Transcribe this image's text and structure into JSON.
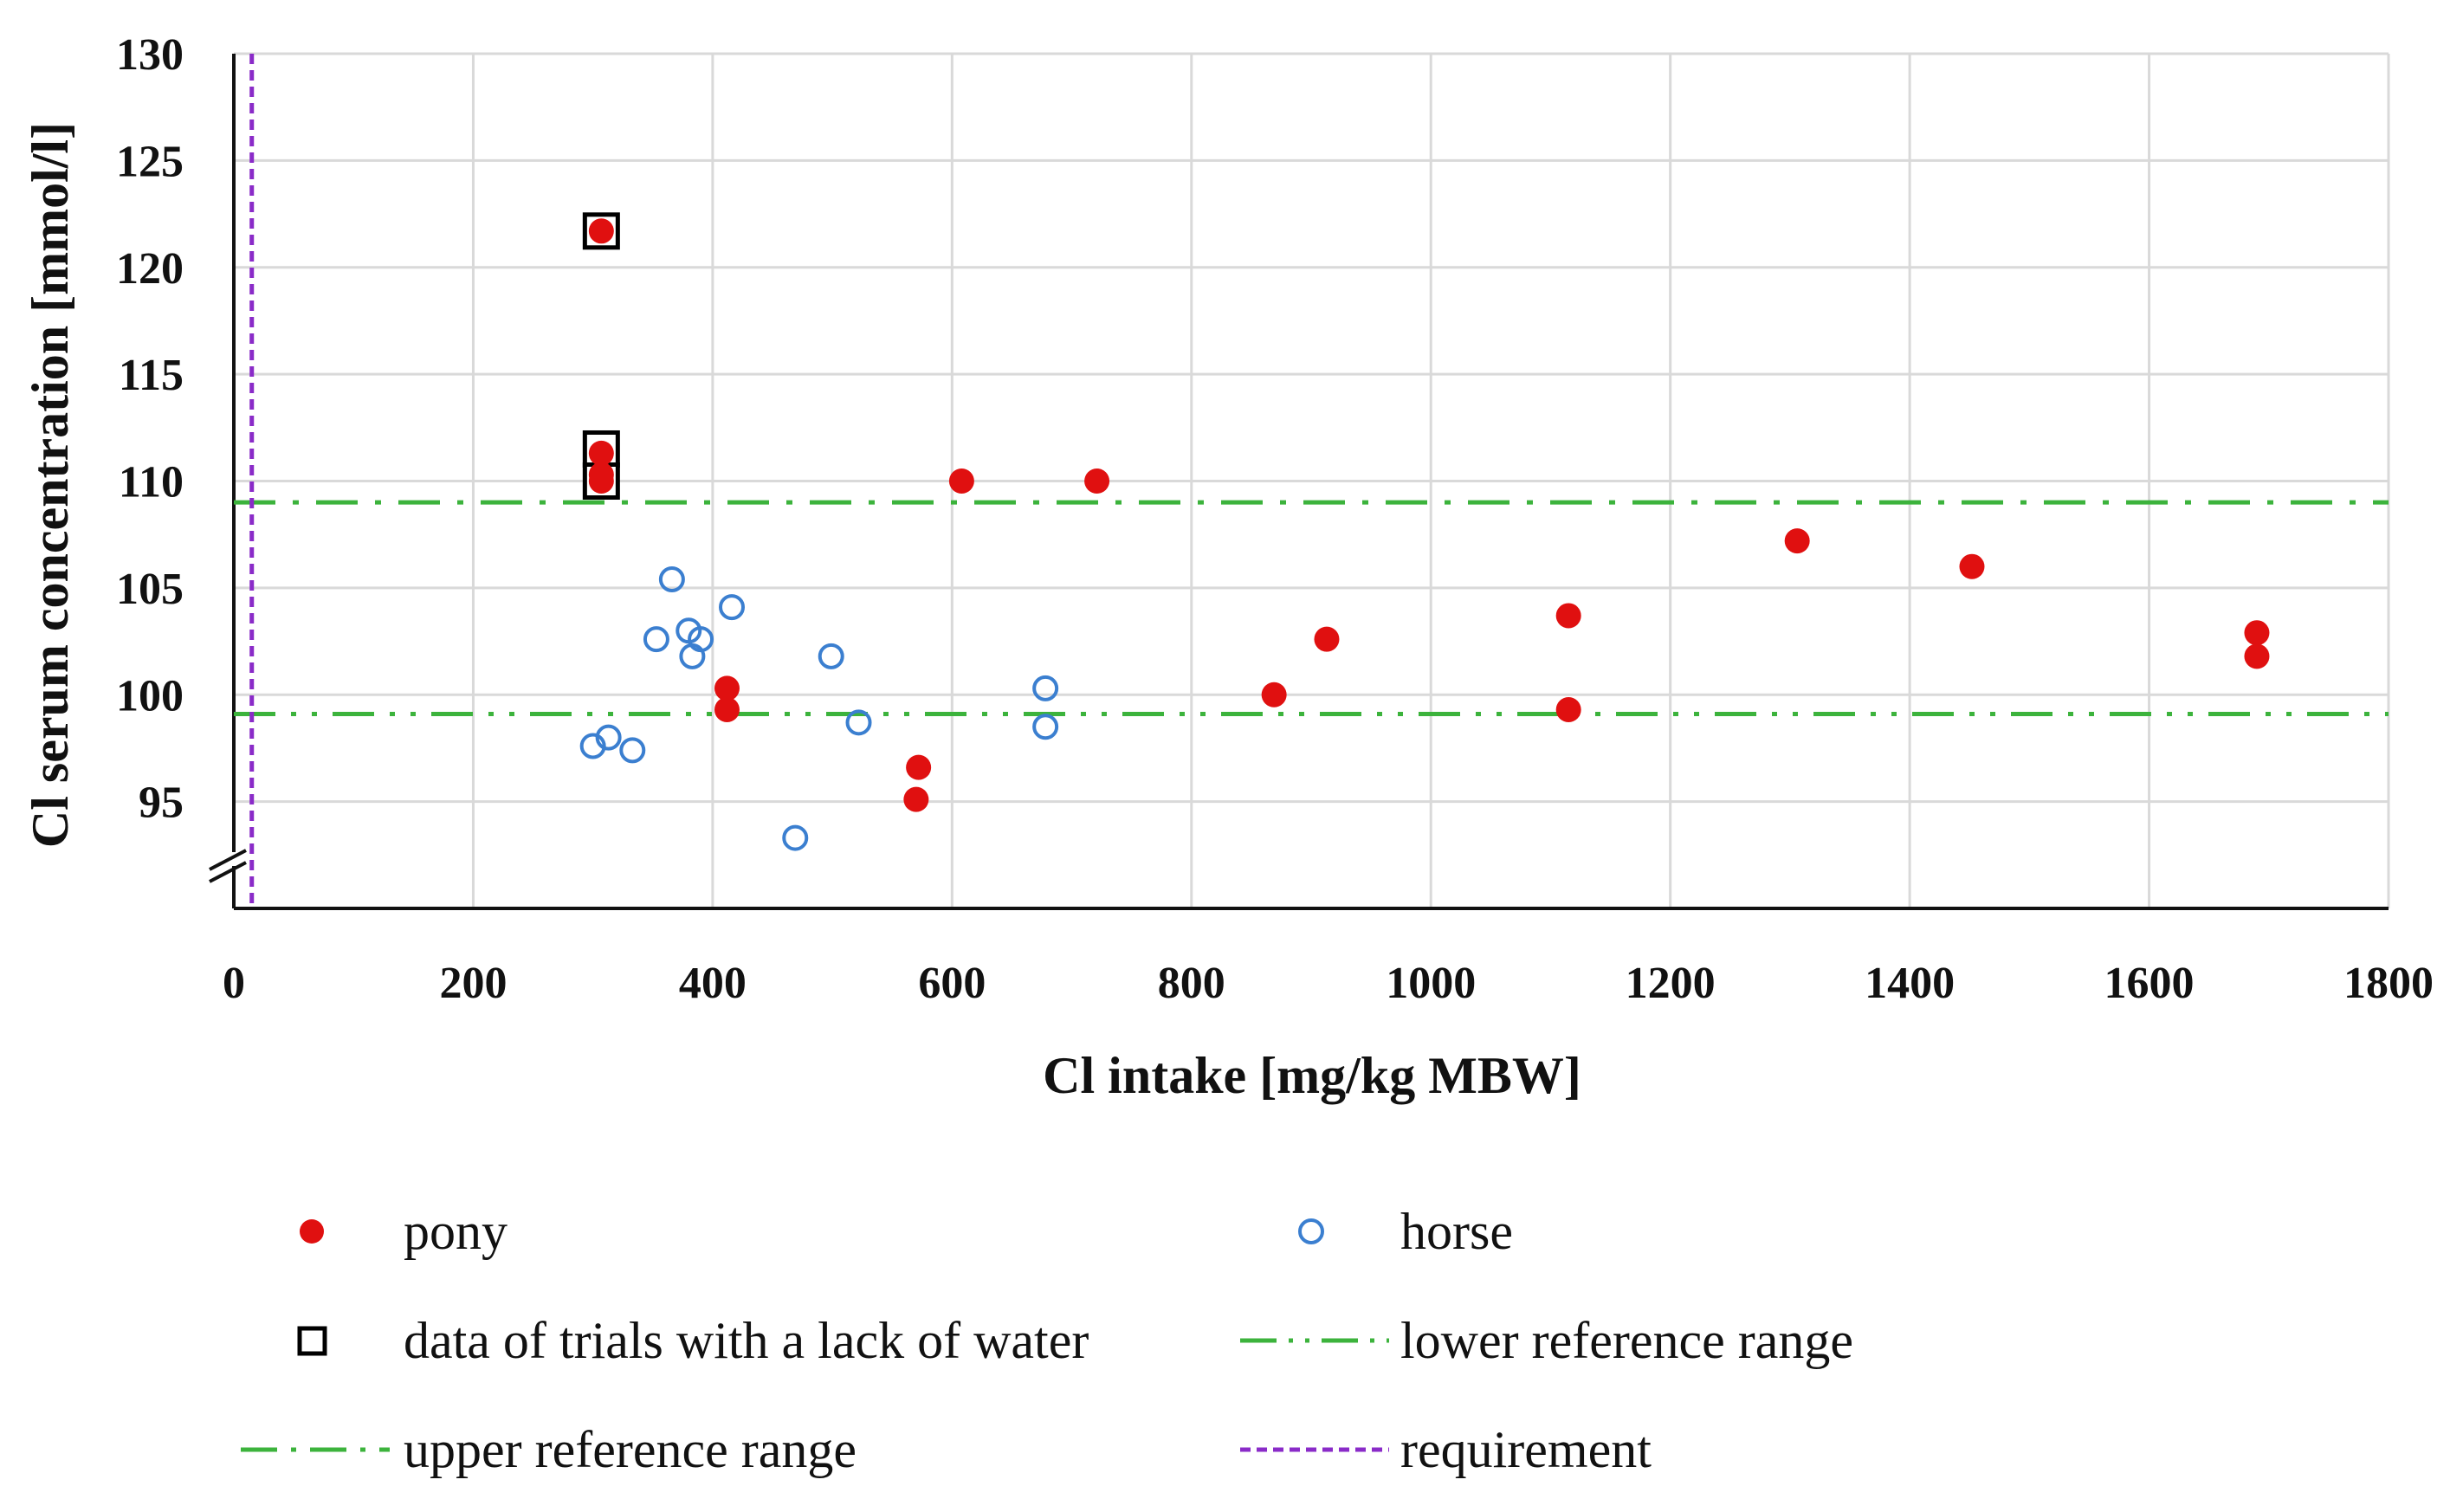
{
  "chart_data": {
    "type": "scatter",
    "title": "",
    "xlabel": "Cl intake [mg/kg MBW]",
    "ylabel": "Cl serum concentration [mmol/l]",
    "xlim": [
      0,
      1800
    ],
    "ylim": [
      90,
      130
    ],
    "x_ticks": [
      "0",
      "200",
      "400",
      "600",
      "800",
      "1000",
      "1200",
      "1400",
      "1600",
      "1800"
    ],
    "y_ticks": [
      "95",
      "100",
      "105",
      "110",
      "115",
      "120",
      "125",
      "130"
    ],
    "grid": true,
    "y_axis_break": true,
    "series": [
      {
        "name": "pony",
        "marker": "filled-circle",
        "color": "#e01010",
        "points": [
          [
            307,
            121.7
          ],
          [
            307,
            111.3
          ],
          [
            307,
            110.3
          ],
          [
            307,
            110.0
          ],
          [
            412,
            100.3
          ],
          [
            412,
            99.3
          ],
          [
            572,
            96.6
          ],
          [
            570,
            95.1
          ],
          [
            608,
            110.0
          ],
          [
            721,
            110.0
          ],
          [
            869,
            100.0
          ],
          [
            913,
            102.6
          ],
          [
            1115,
            103.7
          ],
          [
            1115,
            99.3
          ],
          [
            1306,
            107.2
          ],
          [
            1452,
            106.0
          ],
          [
            1690,
            102.9
          ],
          [
            1690,
            101.8
          ]
        ]
      },
      {
        "name": "horse",
        "marker": "open-circle",
        "color": "#3b7fd0",
        "points": [
          [
            300,
            97.6
          ],
          [
            313,
            98.0
          ],
          [
            333,
            97.4
          ],
          [
            353,
            102.6
          ],
          [
            366,
            105.4
          ],
          [
            380,
            103.0
          ],
          [
            383,
            101.8
          ],
          [
            390,
            102.6
          ],
          [
            416,
            104.1
          ],
          [
            469,
            93.3
          ],
          [
            499,
            101.8
          ],
          [
            522,
            98.7
          ],
          [
            678,
            100.3
          ],
          [
            678,
            98.5
          ]
        ]
      },
      {
        "name": "data of trials with a lack of water",
        "marker": "open-square",
        "color": "#000000",
        "points": [
          [
            307,
            121.7
          ],
          [
            307,
            111.5
          ],
          [
            307,
            110.0
          ]
        ]
      }
    ],
    "reference_lines": [
      {
        "name": "lower reference range",
        "axis": "y",
        "value": 99.1,
        "color": "#3cb33c",
        "style": "dash-dot-dot"
      },
      {
        "name": "upper reference range",
        "axis": "y",
        "value": 109.0,
        "color": "#3cb33c",
        "style": "dash-dot"
      },
      {
        "name": "requirement",
        "axis": "x",
        "value": 15,
        "color": "#8a2bc8",
        "style": "dashed"
      }
    ],
    "legend": {
      "placement": "bottom",
      "entries": [
        {
          "label": "pony",
          "symbol": "filled-circle"
        },
        {
          "label": "horse",
          "symbol": "open-circle"
        },
        {
          "label": "data of trials with a lack of water",
          "symbol": "open-square"
        },
        {
          "label": "lower reference range",
          "symbol": "dash-dot-dot"
        },
        {
          "label": "upper reference range",
          "symbol": "dash-dot"
        },
        {
          "label": "requirement",
          "symbol": "dashed"
        }
      ]
    }
  }
}
